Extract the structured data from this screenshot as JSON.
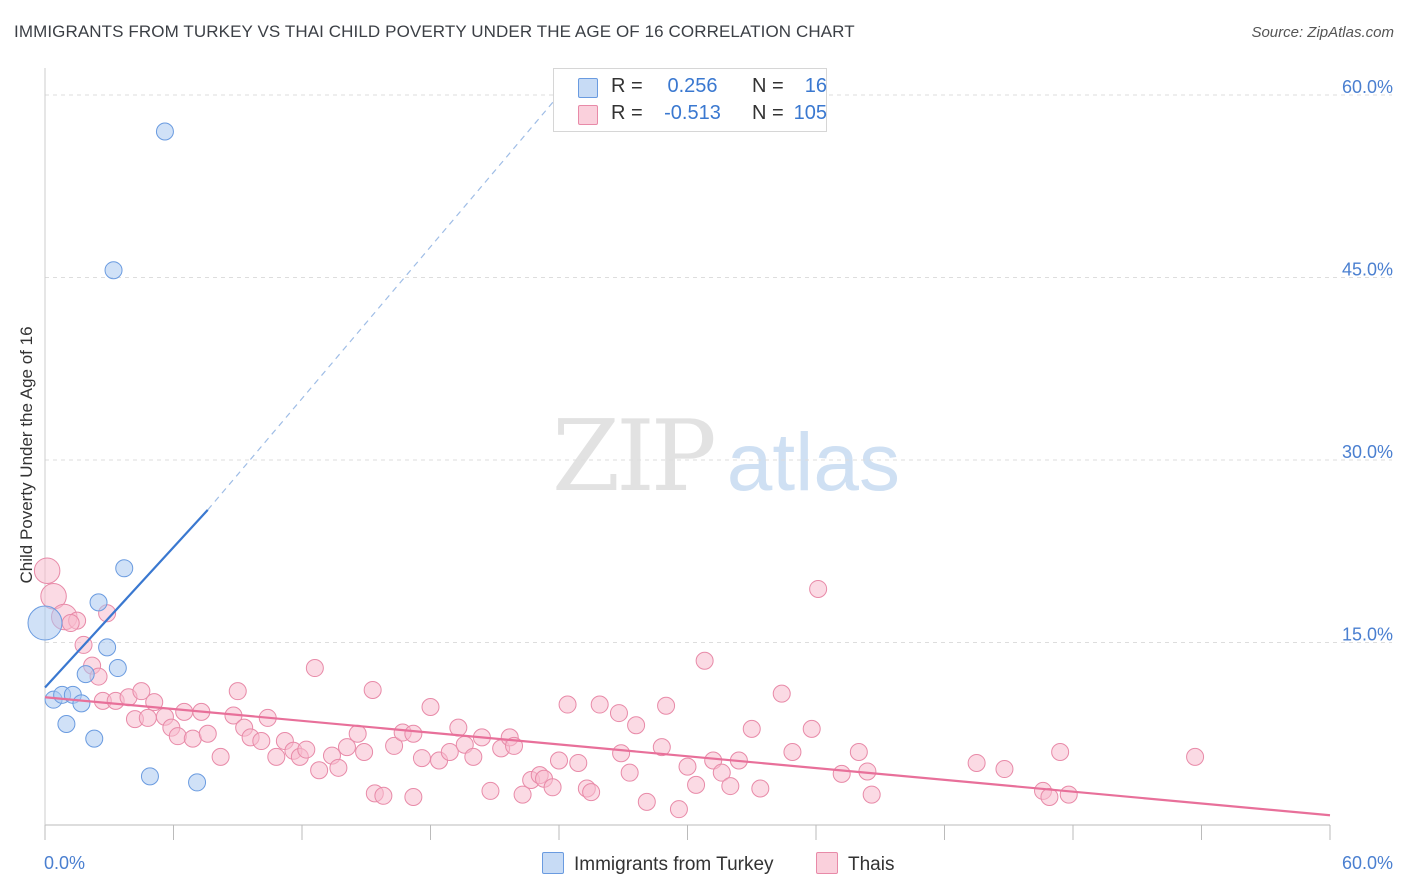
{
  "title": "IMMIGRANTS FROM TURKEY VS THAI CHILD POVERTY UNDER THE AGE OF 16 CORRELATION CHART",
  "source": "Source: ZipAtlas.com",
  "watermark": {
    "zip": "ZIP",
    "atlas": "atlas"
  },
  "legend": {
    "r_label": "R =",
    "n_label": "N =",
    "rows": [
      {
        "series": "Immigrants from Turkey",
        "r": "0.256",
        "n": "16",
        "color": "#a9c8f0",
        "border": "#6a9be0"
      },
      {
        "series": "Thais",
        "r": "-0.513",
        "n": "105",
        "color": "#f7bccd",
        "border": "#e88aa8"
      }
    ]
  },
  "bottom_legend": [
    "Immigrants from Turkey",
    "Thais"
  ],
  "colors": {
    "blue_line": "#3a78d0",
    "pink_line": "#e8709a",
    "blue_fill": "#a9c8f0",
    "pink_fill": "#f7bccd",
    "grid": "#dddddd",
    "axis_text": "#4a7fd0"
  },
  "chart_data": {
    "type": "scatter",
    "title": "IMMIGRANTS FROM TURKEY VS THAI CHILD POVERTY UNDER THE AGE OF 16 CORRELATION CHART",
    "xlabel": "",
    "ylabel": "Child Poverty Under the Age of 16",
    "xlim": [
      0,
      60
    ],
    "ylim": [
      0,
      60
    ],
    "x_tick_labels": [
      "0.0%",
      "60.0%"
    ],
    "y_ticks": [
      15,
      30,
      45,
      60
    ],
    "y_tick_labels": [
      "15.0%",
      "30.0%",
      "45.0%",
      "60.0%"
    ],
    "series": [
      {
        "name": "Immigrants from Turkey",
        "r": 0.256,
        "n": 16,
        "points": [
          {
            "x": 5.6,
            "y": 57.0,
            "s": 1
          },
          {
            "x": 3.2,
            "y": 45.6,
            "s": 1
          },
          {
            "x": 3.7,
            "y": 21.1,
            "s": 1
          },
          {
            "x": 2.5,
            "y": 18.3,
            "s": 1
          },
          {
            "x": 0.0,
            "y": 16.6,
            "s": 3
          },
          {
            "x": 2.9,
            "y": 14.6,
            "s": 1
          },
          {
            "x": 3.4,
            "y": 12.9,
            "s": 1
          },
          {
            "x": 1.9,
            "y": 12.4,
            "s": 1
          },
          {
            "x": 0.4,
            "y": 10.3,
            "s": 1
          },
          {
            "x": 0.8,
            "y": 10.7,
            "s": 1
          },
          {
            "x": 1.3,
            "y": 10.7,
            "s": 1
          },
          {
            "x": 1.7,
            "y": 10.0,
            "s": 1
          },
          {
            "x": 1.0,
            "y": 8.3,
            "s": 1
          },
          {
            "x": 2.3,
            "y": 7.1,
            "s": 1
          },
          {
            "x": 4.9,
            "y": 4.0,
            "s": 1
          },
          {
            "x": 7.1,
            "y": 3.5,
            "s": 1
          }
        ],
        "trend_solid": {
          "x0": 0,
          "y0": 11.3,
          "x1": 7.6,
          "y1": 25.9
        },
        "trend_dashed": {
          "x0": 7.6,
          "y0": 25.9,
          "x1": 24.0,
          "y1": 60.0
        }
      },
      {
        "name": "Thais",
        "r": -0.513,
        "n": 105,
        "points": [
          {
            "x": 0.1,
            "y": 20.9,
            "s": 2
          },
          {
            "x": 0.4,
            "y": 18.8,
            "s": 2
          },
          {
            "x": 0.9,
            "y": 17.1,
            "s": 2
          },
          {
            "x": 1.5,
            "y": 16.8,
            "s": 1
          },
          {
            "x": 1.2,
            "y": 16.6,
            "s": 1
          },
          {
            "x": 2.9,
            "y": 17.4,
            "s": 1
          },
          {
            "x": 1.8,
            "y": 14.8,
            "s": 1
          },
          {
            "x": 2.2,
            "y": 13.1,
            "s": 1
          },
          {
            "x": 2.5,
            "y": 12.2,
            "s": 1
          },
          {
            "x": 2.7,
            "y": 10.2,
            "s": 1
          },
          {
            "x": 3.3,
            "y": 10.2,
            "s": 1
          },
          {
            "x": 3.9,
            "y": 10.5,
            "s": 1
          },
          {
            "x": 4.5,
            "y": 11.0,
            "s": 1
          },
          {
            "x": 5.1,
            "y": 10.1,
            "s": 1
          },
          {
            "x": 4.2,
            "y": 8.7,
            "s": 1
          },
          {
            "x": 4.8,
            "y": 8.8,
            "s": 1
          },
          {
            "x": 5.6,
            "y": 8.9,
            "s": 1
          },
          {
            "x": 6.5,
            "y": 9.3,
            "s": 1
          },
          {
            "x": 7.3,
            "y": 9.3,
            "s": 1
          },
          {
            "x": 5.9,
            "y": 8.0,
            "s": 1
          },
          {
            "x": 6.2,
            "y": 7.3,
            "s": 1
          },
          {
            "x": 6.9,
            "y": 7.1,
            "s": 1
          },
          {
            "x": 7.6,
            "y": 7.5,
            "s": 1
          },
          {
            "x": 8.2,
            "y": 5.6,
            "s": 1
          },
          {
            "x": 8.8,
            "y": 9.0,
            "s": 1
          },
          {
            "x": 9.0,
            "y": 11.0,
            "s": 1
          },
          {
            "x": 9.3,
            "y": 8.0,
            "s": 1
          },
          {
            "x": 9.6,
            "y": 7.2,
            "s": 1
          },
          {
            "x": 10.1,
            "y": 6.9,
            "s": 1
          },
          {
            "x": 10.4,
            "y": 8.8,
            "s": 1
          },
          {
            "x": 10.8,
            "y": 5.6,
            "s": 1
          },
          {
            "x": 11.2,
            "y": 6.9,
            "s": 1
          },
          {
            "x": 11.6,
            "y": 6.1,
            "s": 1
          },
          {
            "x": 11.9,
            "y": 5.6,
            "s": 1
          },
          {
            "x": 12.2,
            "y": 6.2,
            "s": 1
          },
          {
            "x": 12.6,
            "y": 12.9,
            "s": 1
          },
          {
            "x": 12.8,
            "y": 4.5,
            "s": 1
          },
          {
            "x": 13.4,
            "y": 5.7,
            "s": 1
          },
          {
            "x": 13.7,
            "y": 4.7,
            "s": 1
          },
          {
            "x": 14.1,
            "y": 6.4,
            "s": 1
          },
          {
            "x": 14.6,
            "y": 7.5,
            "s": 1
          },
          {
            "x": 14.9,
            "y": 6.0,
            "s": 1
          },
          {
            "x": 15.3,
            "y": 11.1,
            "s": 1
          },
          {
            "x": 15.4,
            "y": 2.6,
            "s": 1
          },
          {
            "x": 15.8,
            "y": 2.4,
            "s": 1
          },
          {
            "x": 16.3,
            "y": 6.5,
            "s": 1
          },
          {
            "x": 16.7,
            "y": 7.6,
            "s": 1
          },
          {
            "x": 17.2,
            "y": 7.5,
            "s": 1
          },
          {
            "x": 17.2,
            "y": 2.3,
            "s": 1
          },
          {
            "x": 17.6,
            "y": 5.5,
            "s": 1
          },
          {
            "x": 18.0,
            "y": 9.7,
            "s": 1
          },
          {
            "x": 18.4,
            "y": 5.3,
            "s": 1
          },
          {
            "x": 18.9,
            "y": 6.0,
            "s": 1
          },
          {
            "x": 19.3,
            "y": 8.0,
            "s": 1
          },
          {
            "x": 19.6,
            "y": 6.6,
            "s": 1
          },
          {
            "x": 20.0,
            "y": 5.6,
            "s": 1
          },
          {
            "x": 20.4,
            "y": 7.2,
            "s": 1
          },
          {
            "x": 20.8,
            "y": 2.8,
            "s": 1
          },
          {
            "x": 21.3,
            "y": 6.3,
            "s": 1
          },
          {
            "x": 21.7,
            "y": 7.2,
            "s": 1
          },
          {
            "x": 21.9,
            "y": 6.5,
            "s": 1
          },
          {
            "x": 22.3,
            "y": 2.5,
            "s": 1
          },
          {
            "x": 22.7,
            "y": 3.7,
            "s": 1
          },
          {
            "x": 23.1,
            "y": 4.1,
            "s": 1
          },
          {
            "x": 23.3,
            "y": 3.8,
            "s": 1
          },
          {
            "x": 23.7,
            "y": 3.1,
            "s": 1
          },
          {
            "x": 24.0,
            "y": 5.3,
            "s": 1
          },
          {
            "x": 24.4,
            "y": 9.9,
            "s": 1
          },
          {
            "x": 24.9,
            "y": 5.1,
            "s": 1
          },
          {
            "x": 25.3,
            "y": 3.0,
            "s": 1
          },
          {
            "x": 25.5,
            "y": 2.7,
            "s": 1
          },
          {
            "x": 25.9,
            "y": 9.9,
            "s": 1
          },
          {
            "x": 26.9,
            "y": 5.9,
            "s": 1
          },
          {
            "x": 26.8,
            "y": 9.2,
            "s": 1
          },
          {
            "x": 27.3,
            "y": 4.3,
            "s": 1
          },
          {
            "x": 27.6,
            "y": 8.2,
            "s": 1
          },
          {
            "x": 28.1,
            "y": 1.9,
            "s": 1
          },
          {
            "x": 28.8,
            "y": 6.4,
            "s": 1
          },
          {
            "x": 29.0,
            "y": 9.8,
            "s": 1
          },
          {
            "x": 29.6,
            "y": 1.3,
            "s": 1
          },
          {
            "x": 30.0,
            "y": 4.8,
            "s": 1
          },
          {
            "x": 30.4,
            "y": 3.3,
            "s": 1
          },
          {
            "x": 30.8,
            "y": 13.5,
            "s": 1
          },
          {
            "x": 31.2,
            "y": 5.3,
            "s": 1
          },
          {
            "x": 31.6,
            "y": 4.3,
            "s": 1
          },
          {
            "x": 32.0,
            "y": 3.2,
            "s": 1
          },
          {
            "x": 32.4,
            "y": 5.3,
            "s": 1
          },
          {
            "x": 33.0,
            "y": 7.9,
            "s": 1
          },
          {
            "x": 33.4,
            "y": 3.0,
            "s": 1
          },
          {
            "x": 34.4,
            "y": 10.8,
            "s": 1
          },
          {
            "x": 34.9,
            "y": 6.0,
            "s": 1
          },
          {
            "x": 35.8,
            "y": 7.9,
            "s": 1
          },
          {
            "x": 36.1,
            "y": 19.4,
            "s": 1
          },
          {
            "x": 37.2,
            "y": 4.2,
            "s": 1
          },
          {
            "x": 38.0,
            "y": 6.0,
            "s": 1
          },
          {
            "x": 38.4,
            "y": 4.4,
            "s": 1
          },
          {
            "x": 38.6,
            "y": 2.5,
            "s": 1
          },
          {
            "x": 43.5,
            "y": 5.1,
            "s": 1
          },
          {
            "x": 44.8,
            "y": 4.6,
            "s": 1
          },
          {
            "x": 46.6,
            "y": 2.8,
            "s": 1
          },
          {
            "x": 46.9,
            "y": 2.3,
            "s": 1
          },
          {
            "x": 47.4,
            "y": 6.0,
            "s": 1
          },
          {
            "x": 47.8,
            "y": 2.5,
            "s": 1
          },
          {
            "x": 53.7,
            "y": 5.6,
            "s": 1
          }
        ],
        "trend_solid": {
          "x0": 0,
          "y0": 10.5,
          "x1": 60,
          "y1": 0.8
        }
      }
    ]
  }
}
